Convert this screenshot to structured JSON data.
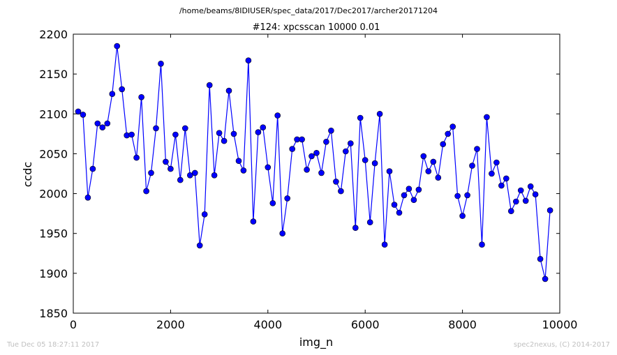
{
  "chart_data": {
    "type": "line",
    "suptitle": "/home/beams/8IDIUSER/spec_data/2017/Dec2017/archer20171204",
    "title": "#124: xpcsscan 10000 0.01",
    "xlabel": "img_n",
    "ylabel": "ccdc",
    "xlim": [
      0,
      10000
    ],
    "ylim": [
      1850,
      2200
    ],
    "xticks": [
      "0",
      "2000",
      "4000",
      "6000",
      "8000",
      "10000"
    ],
    "yticks": [
      "1850",
      "1900",
      "1950",
      "2000",
      "2050",
      "2100",
      "2150",
      "2200"
    ],
    "grid": false,
    "line_color": "#0000ff",
    "marker_color": "#0000ff",
    "x": [
      100,
      200,
      300,
      400,
      500,
      600,
      700,
      800,
      900,
      1000,
      1100,
      1200,
      1300,
      1400,
      1500,
      1600,
      1700,
      1800,
      1900,
      2000,
      2100,
      2200,
      2300,
      2400,
      2500,
      2600,
      2700,
      2800,
      2900,
      3000,
      3100,
      3200,
      3300,
      3400,
      3500,
      3600,
      3700,
      3800,
      3900,
      4000,
      4100,
      4200,
      4300,
      4400,
      4500,
      4600,
      4700,
      4800,
      4900,
      5000,
      5100,
      5200,
      5300,
      5400,
      5500,
      5600,
      5700,
      5800,
      5900,
      6000,
      6100,
      6200,
      6300,
      6400,
      6500,
      6600,
      6700,
      6800,
      6900,
      7000,
      7100,
      7200,
      7300,
      7400,
      7500,
      7600,
      7700,
      7800,
      7900,
      8000,
      8100,
      8200,
      8300,
      8400,
      8500,
      8600,
      8700,
      8800,
      8900,
      9000,
      9100,
      9200,
      9300,
      9400,
      9500,
      9600,
      9700,
      9800,
      9900,
      10000
    ],
    "y": [
      2103,
      2099,
      1995,
      2031,
      2088,
      2083,
      2088,
      2125,
      2185,
      2131,
      2073,
      2074,
      2045,
      2121,
      2003,
      2026,
      2082,
      2163,
      2040,
      2031,
      2074,
      2017,
      2082,
      2023,
      2026,
      1935,
      1974,
      2136,
      2023,
      2076,
      2066,
      2129,
      2075,
      2041,
      2029,
      2167,
      1965,
      2077,
      2083,
      2033,
      1988,
      2098,
      1950,
      1994,
      2056,
      2068,
      2068,
      2030,
      2047,
      2051,
      2026,
      2065,
      2079,
      2015,
      2003,
      2053,
      2063,
      1957,
      2095,
      2042,
      1964,
      2038,
      2100,
      1936,
      2028,
      1986,
      1976,
      1998,
      2006,
      1992,
      2005,
      2047,
      2028,
      2040,
      2020,
      2062,
      2075,
      2084,
      1997,
      1972,
      1998,
      2035,
      2056,
      1936,
      2096,
      2025,
      2039,
      2010,
      2019,
      1978,
      1990,
      2004,
      1991,
      2009,
      1999,
      1918,
      1893,
      1979,
      null,
      null
    ]
  },
  "footer": {
    "left": "Tue Dec 05 18:27:11 2017",
    "right": "spec2nexus, (C) 2014-2017"
  }
}
